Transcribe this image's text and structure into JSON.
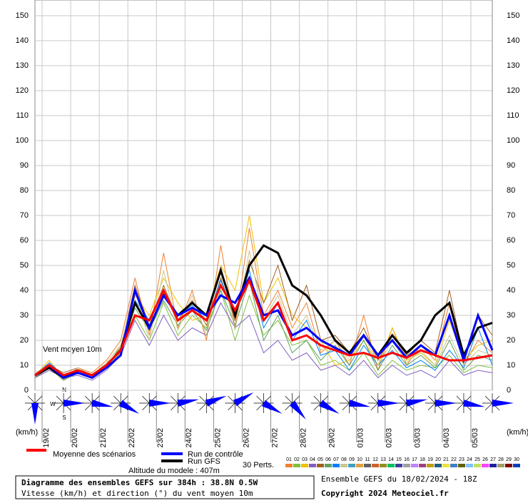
{
  "chart_data": {
    "type": "line",
    "title": "Diagramme des ensembles GEFS sur 384h : 38.8N 0.5W",
    "subtitle": "Vitesse (km/h) et direction (°) du vent moyen 10m",
    "run_info": "Ensemble GEFS du 18/02/2024 - 18Z",
    "copyright": "Copyright 2024 Meteociel.fr",
    "altitude": "Altitude du modele : 407m",
    "annotation": "Vent moyen 10m",
    "y_unit_left": "(km/h)",
    "y_unit_right": "(km/h)",
    "perts_label": "30 Perts.",
    "compass": [
      "N",
      "W",
      "S"
    ],
    "ylim": [
      0,
      150
    ],
    "yticks": [
      0,
      10,
      20,
      30,
      40,
      50,
      60,
      70,
      80,
      90,
      100,
      110,
      120,
      130,
      140,
      150
    ],
    "xlim": [
      0,
      384
    ],
    "xticks": [
      {
        "value": 6,
        "label": "19/02"
      },
      {
        "value": 30,
        "label": "20/02"
      },
      {
        "value": 54,
        "label": "21/02"
      },
      {
        "value": 78,
        "label": "22/02"
      },
      {
        "value": 102,
        "label": "23/02"
      },
      {
        "value": 126,
        "label": "24/02"
      },
      {
        "value": 150,
        "label": "25/02"
      },
      {
        "value": 174,
        "label": "26/02"
      },
      {
        "value": 198,
        "label": "27/02"
      },
      {
        "value": 222,
        "label": "28/02"
      },
      {
        "value": 246,
        "label": "29/02"
      },
      {
        "value": 270,
        "label": "01/03"
      },
      {
        "value": 294,
        "label": "02/03"
      },
      {
        "value": 318,
        "label": "03/03"
      },
      {
        "value": 342,
        "label": "04/03"
      },
      {
        "value": 366,
        "label": "05/03"
      }
    ],
    "grid": true,
    "x": [
      0,
      12,
      24,
      36,
      48,
      60,
      72,
      84,
      96,
      108,
      120,
      132,
      144,
      156,
      168,
      180,
      192,
      204,
      216,
      228,
      240,
      252,
      264,
      276,
      288,
      300,
      312,
      324,
      336,
      348,
      360,
      372,
      384
    ],
    "perturbations": [
      {
        "name": "01",
        "color": "#f08030",
        "values": [
          5,
          11,
          4,
          9,
          7,
          12,
          20,
          45,
          22,
          55,
          25,
          40,
          20,
          58,
          25,
          65,
          30,
          40,
          25,
          35,
          15,
          20,
          10,
          30,
          8,
          25,
          10,
          18,
          12,
          35,
          10,
          20,
          15
        ]
      },
      {
        "name": "02",
        "color": "#80c040",
        "values": [
          7,
          9,
          6,
          7,
          5,
          9,
          18,
          30,
          20,
          35,
          22,
          30,
          25,
          40,
          20,
          38,
          22,
          28,
          18,
          20,
          10,
          12,
          8,
          15,
          6,
          12,
          8,
          10,
          9,
          14,
          7,
          10,
          9
        ]
      },
      {
        "name": "03",
        "color": "#f0c000",
        "values": [
          6,
          12,
          5,
          8,
          6,
          11,
          15,
          38,
          30,
          45,
          35,
          28,
          30,
          50,
          40,
          70,
          35,
          45,
          30,
          25,
          20,
          10,
          12,
          20,
          10,
          25,
          12,
          15,
          10,
          28,
          12,
          18,
          20
        ]
      },
      {
        "name": "04",
        "color": "#8060c0",
        "values": [
          5,
          8,
          5,
          6,
          4,
          8,
          14,
          28,
          18,
          30,
          20,
          25,
          22,
          35,
          25,
          30,
          15,
          20,
          12,
          15,
          8,
          10,
          6,
          12,
          5,
          10,
          6,
          8,
          5,
          12,
          6,
          8,
          7
        ]
      },
      {
        "name": "05",
        "color": "#a06020",
        "values": [
          6,
          10,
          7,
          9,
          6,
          10,
          17,
          42,
          26,
          42,
          28,
          36,
          26,
          45,
          28,
          52,
          35,
          50,
          28,
          42,
          20,
          22,
          15,
          25,
          12,
          22,
          14,
          20,
          15,
          40,
          13,
          30,
          22
        ]
      },
      {
        "name": "06",
        "color": "#60a060",
        "values": [
          5,
          9,
          4,
          7,
          5,
          9,
          15,
          33,
          24,
          36,
          26,
          32,
          24,
          40,
          26,
          44,
          20,
          30,
          15,
          20,
          12,
          18,
          10,
          20,
          8,
          18,
          10,
          14,
          9,
          20,
          8,
          14,
          12
        ]
      },
      {
        "name": "07",
        "color": "#0080ff",
        "values": [
          6,
          11,
          6,
          8,
          5,
          10,
          16,
          36,
          28,
          40,
          30,
          34,
          28,
          44,
          30,
          48,
          25,
          35,
          20,
          28,
          14,
          16,
          8,
          18,
          10,
          16,
          9,
          12,
          8,
          16,
          9,
          25,
          10
        ]
      },
      {
        "name": "08",
        "color": "#c8c890",
        "values": [
          7,
          10,
          5,
          9,
          6,
          11,
          18,
          40,
          20,
          48,
          24,
          38,
          22,
          50,
          24,
          56,
          28,
          38,
          22,
          30,
          16,
          20,
          12,
          22,
          10,
          20,
          11,
          16,
          10,
          22,
          10,
          16,
          14
        ]
      },
      {
        "name": "09",
        "color": "#40a0c0"
      },
      {
        "name": "10",
        "color": "#e0a040"
      },
      {
        "name": "11",
        "color": "#606060"
      },
      {
        "name": "12",
        "color": "#d06030"
      },
      {
        "name": "13",
        "color": "#909020"
      },
      {
        "name": "14",
        "color": "#00c060"
      },
      {
        "name": "15",
        "color": "#4040a0"
      },
      {
        "name": "16",
        "color": "#a0a0a0"
      },
      {
        "name": "17",
        "color": "#c080ff"
      },
      {
        "name": "18",
        "color": "#a04080"
      },
      {
        "name": "19",
        "color": "#c0a000"
      },
      {
        "name": "20",
        "color": "#206080"
      },
      {
        "name": "21",
        "color": "#f0e040"
      },
      {
        "name": "22",
        "color": "#4080c0"
      },
      {
        "name": "23",
        "color": "#606000"
      },
      {
        "name": "24",
        "color": "#80c0ff"
      },
      {
        "name": "25",
        "color": "#c0e060"
      },
      {
        "name": "26",
        "color": "#ff40ff"
      },
      {
        "name": "27",
        "color": "#2020a0"
      },
      {
        "name": "28",
        "color": "#a0a060"
      },
      {
        "name": "29",
        "color": "#800000"
      },
      {
        "name": "30",
        "color": "#0040c0"
      }
    ],
    "series": [
      {
        "name": "Run GFS",
        "color": "#000000",
        "values": [
          6,
          9,
          5,
          8,
          6,
          10,
          16,
          35,
          25,
          38,
          30,
          35,
          30,
          48,
          30,
          50,
          58,
          55,
          42,
          38,
          30,
          20,
          15,
          22,
          14,
          22,
          15,
          20,
          30,
          35,
          14,
          25,
          27
        ]
      },
      {
        "name": "Run de contrôle",
        "color": "#0000ff",
        "values": [
          6,
          10,
          5,
          7,
          5,
          9,
          14,
          40,
          25,
          38,
          30,
          33,
          30,
          38,
          35,
          45,
          30,
          32,
          22,
          25,
          20,
          17,
          14,
          22,
          14,
          20,
          13,
          18,
          14,
          30,
          12,
          30,
          16
        ]
      },
      {
        "name": "Moyenne des scénarios",
        "color": "#ff0000",
        "values": [
          6,
          10,
          6,
          8,
          6,
          10,
          16,
          30,
          28,
          40,
          28,
          32,
          28,
          42,
          32,
          44,
          28,
          35,
          20,
          22,
          18,
          16,
          14,
          15,
          13,
          15,
          13,
          16,
          14,
          12,
          12,
          13,
          14
        ]
      }
    ],
    "wind_x": [
      0,
      24,
      48,
      72,
      96,
      120,
      144,
      168,
      192,
      216,
      240,
      264,
      288,
      312,
      336,
      360,
      384
    ],
    "wind_direction": [
      0,
      270,
      280,
      300,
      270,
      260,
      250,
      240,
      300,
      320,
      300,
      280,
      270,
      260,
      270,
      280,
      270
    ]
  }
}
